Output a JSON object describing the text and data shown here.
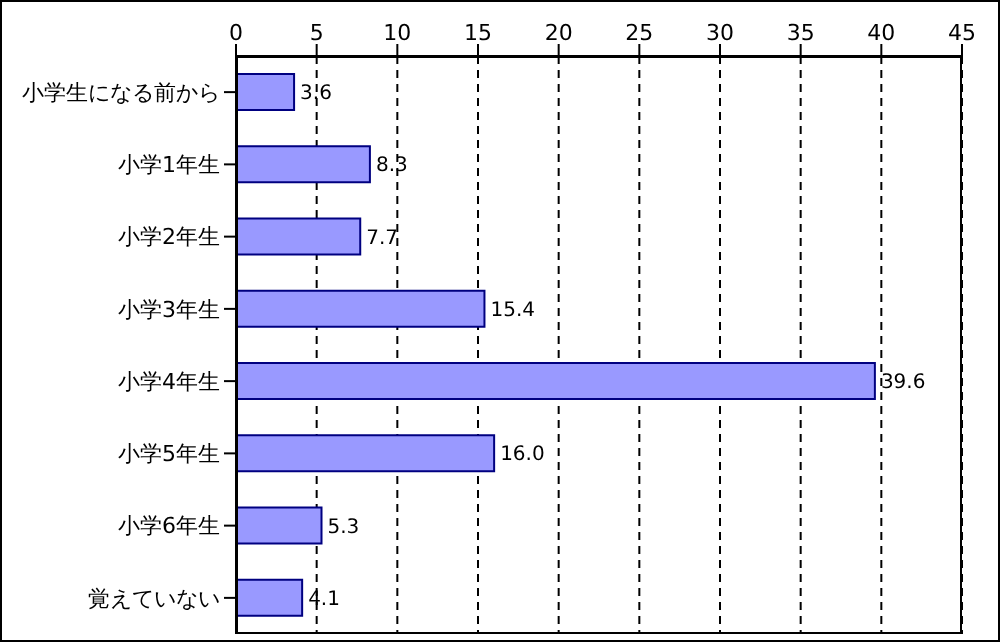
{
  "chart_data": {
    "type": "bar",
    "orientation": "horizontal",
    "categories": [
      "小学生になる前から",
      "小学1年生",
      "小学2年生",
      "小学3年生",
      "小学4年生",
      "小学5年生",
      "小学6年生",
      "覚えていない"
    ],
    "values": [
      3.6,
      8.3,
      7.7,
      15.4,
      39.6,
      16.0,
      5.3,
      4.1
    ],
    "value_labels": [
      "3.6",
      "8.3",
      "7.7",
      "15.4",
      "39.6",
      "16.0",
      "5.3",
      "4.1"
    ],
    "color": "#9999ff",
    "xlim": [
      0,
      45
    ],
    "xticks": [
      0,
      5,
      10,
      15,
      20,
      25,
      30,
      35,
      40,
      45
    ],
    "grid": "x"
  }
}
